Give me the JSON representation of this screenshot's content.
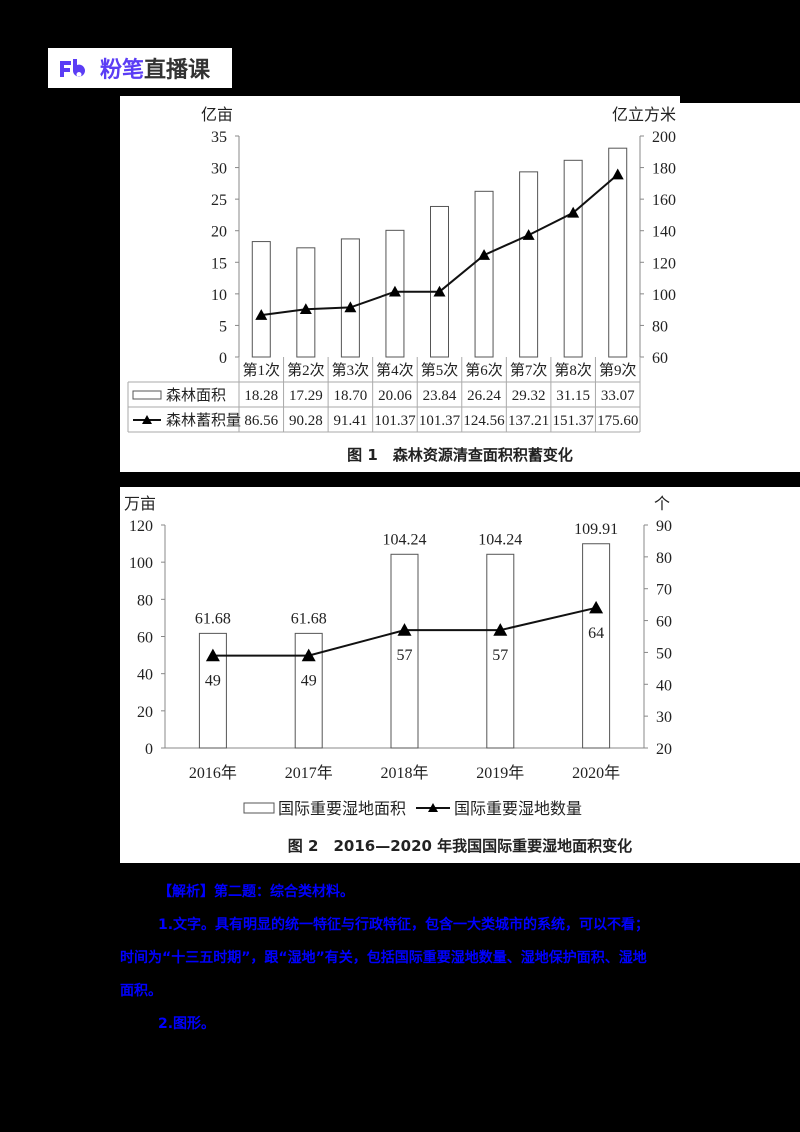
{
  "logo": {
    "mark": "Fb",
    "brand": "粉笔",
    "product": "直播课",
    "brand_color": "#5b3df5"
  },
  "figure1": {
    "caption": "图 1　森林资源清查面积积蓄变化",
    "left_unit": "亿亩",
    "right_unit": "亿立方米",
    "left_ticks": [
      "0",
      "5",
      "10",
      "15",
      "20",
      "25",
      "30",
      "35"
    ],
    "right_ticks": [
      "60",
      "80",
      "100",
      "120",
      "140",
      "160",
      "180",
      "200"
    ],
    "categories": [
      "第1次",
      "第2次",
      "第3次",
      "第4次",
      "第5次",
      "第6次",
      "第7次",
      "第8次",
      "第9次"
    ],
    "table": {
      "rows": [
        {
          "label": "森林面积",
          "values": [
            "18.28",
            "17.29",
            "18.70",
            "20.06",
            "23.84",
            "26.24",
            "29.32",
            "31.15",
            "33.07"
          ]
        },
        {
          "label": "森林蓄积量",
          "values": [
            "86.56",
            "90.28",
            "91.41",
            "101.37",
            "101.37",
            "124.56",
            "137.21",
            "151.37",
            "175.60"
          ]
        }
      ]
    }
  },
  "figure2": {
    "caption": "图 2　2016—2020 年我国国际重要湿地面积变化",
    "left_unit": "万亩",
    "right_unit": "个",
    "left_ticks": [
      "0",
      "20",
      "40",
      "60",
      "80",
      "100",
      "120"
    ],
    "right_ticks": [
      "20",
      "30",
      "40",
      "50",
      "60",
      "70",
      "80",
      "90"
    ],
    "categories": [
      "2016年",
      "2017年",
      "2018年",
      "2019年",
      "2020年"
    ],
    "bar_labels": [
      "61.68",
      "61.68",
      "104.24",
      "104.24",
      "109.91"
    ],
    "line_labels": [
      "49",
      "49",
      "57",
      "57",
      "64"
    ],
    "legend": {
      "bar": "国际重要湿地面积",
      "line": "国际重要湿地数量"
    }
  },
  "analysis": {
    "text_color": "#0000ff",
    "lines": [
      "【解析】第二题：综合类材料。",
      "1.文字。具有明显的统一特征与行政特征，包含一大类城市的系统，可以不看；",
      "时间为“十三五时期”，跟“湿地”有关，包括国际重要湿地数量、湿地保护面积、湿地",
      "面积。",
      "2.图形。"
    ]
  },
  "chart_data": [
    {
      "type": "bar",
      "title": "图 1 森林资源清查面积积蓄变化",
      "categories": [
        "第1次",
        "第2次",
        "第3次",
        "第4次",
        "第5次",
        "第6次",
        "第7次",
        "第8次",
        "第9次"
      ],
      "series": [
        {
          "name": "森林面积",
          "type": "bar",
          "axis": "left",
          "values": [
            18.28,
            17.29,
            18.7,
            20.06,
            23.84,
            26.24,
            29.32,
            31.15,
            33.07
          ]
        },
        {
          "name": "森林蓄积量",
          "type": "line",
          "axis": "right",
          "values": [
            86.56,
            90.28,
            91.41,
            101.37,
            101.37,
            124.56,
            137.21,
            151.37,
            175.6
          ]
        }
      ],
      "xlabel": "",
      "ylabel": "亿亩",
      "ylabel_right": "亿立方米",
      "ylim": [
        0,
        35
      ],
      "ylim_right": [
        60,
        200
      ],
      "grid": false,
      "legend_position": "data-table below"
    },
    {
      "type": "bar",
      "title": "图 2 2016—2020 年我国国际重要湿地面积变化",
      "categories": [
        "2016年",
        "2017年",
        "2018年",
        "2019年",
        "2020年"
      ],
      "series": [
        {
          "name": "国际重要湿地面积",
          "type": "bar",
          "axis": "left",
          "values": [
            61.68,
            61.68,
            104.24,
            104.24,
            109.91
          ]
        },
        {
          "name": "国际重要湿地数量",
          "type": "line",
          "axis": "right",
          "values": [
            49,
            49,
            57,
            57,
            64
          ]
        }
      ],
      "xlabel": "",
      "ylabel": "万亩",
      "ylabel_right": "个",
      "ylim": [
        0,
        120
      ],
      "ylim_right": [
        20,
        90
      ],
      "grid": false,
      "legend_position": "bottom"
    }
  ]
}
